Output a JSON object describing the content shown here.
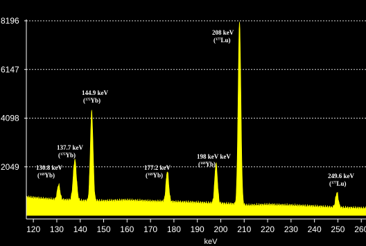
{
  "chart_data": {
    "type": "line",
    "title": "",
    "xlabel": "keV",
    "ylabel": "",
    "xlim": [
      117,
      262
    ],
    "ylim": [
      0,
      8196
    ],
    "x_ticks": [
      120,
      130,
      140,
      150,
      160,
      170,
      180,
      190,
      200,
      210,
      220,
      230,
      240,
      250,
      260
    ],
    "y_ticks": [
      2049,
      4098,
      6147,
      8196
    ],
    "grid": "dashed horizontal at y ticks",
    "colors": {
      "fill": "#ffff00",
      "background": "#000000",
      "text": "#ffffff"
    },
    "baseline_points": [
      [
        117,
        780
      ],
      [
        120,
        740
      ],
      [
        125,
        700
      ],
      [
        130,
        660
      ],
      [
        135,
        650
      ],
      [
        140,
        620
      ],
      [
        150,
        610
      ],
      [
        160,
        640
      ],
      [
        170,
        600
      ],
      [
        180,
        570
      ],
      [
        190,
        540
      ],
      [
        200,
        500
      ],
      [
        205,
        480
      ],
      [
        212,
        420
      ],
      [
        220,
        450
      ],
      [
        230,
        420
      ],
      [
        240,
        380
      ],
      [
        250,
        330
      ],
      [
        262,
        300
      ]
    ],
    "peaks": [
      {
        "x": 130.8,
        "height": 1300,
        "width": 0.6,
        "label": "130.8 keV",
        "isotope_mass": "169",
        "isotope_elem": "Yb"
      },
      {
        "x": 137.7,
        "height": 2350,
        "width": 0.7,
        "label": "137.7 keV",
        "isotope_mass": "175",
        "isotope_elem": "Yb"
      },
      {
        "x": 144.9,
        "height": 4380,
        "width": 0.6,
        "label": "144.9 keV",
        "isotope_mass": "175",
        "isotope_elem": "Yb"
      },
      {
        "x": 177.2,
        "height": 1860,
        "width": 0.6,
        "label": "177.2 keV",
        "isotope_mass": "169",
        "isotope_elem": "Yb"
      },
      {
        "x": 198.0,
        "height": 2180,
        "width": 0.6,
        "label": "198 keV keV",
        "isotope_mass": "169",
        "isotope_elem": "Yb"
      },
      {
        "x": 208.0,
        "height": 8196,
        "width": 0.6,
        "label": "208 keV",
        "isotope_mass": "177",
        "isotope_elem": "Lu"
      },
      {
        "x": 249.6,
        "height": 960,
        "width": 0.6,
        "label": "249.6 keV",
        "isotope_mass": "177",
        "isotope_elem": "Lu"
      }
    ]
  }
}
